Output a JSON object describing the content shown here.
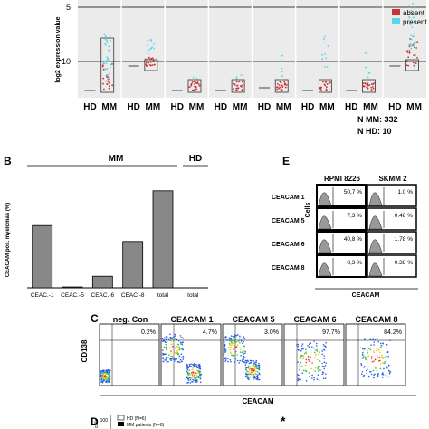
{
  "panelA": {
    "ylabel": "log2 expression value",
    "yticks": [
      5,
      10
    ],
    "legend": [
      {
        "label": "absent",
        "color": "#cc3333"
      },
      {
        "label": "present",
        "color": "#55d8e8"
      }
    ],
    "group_labels": [
      "HD",
      "MM"
    ],
    "n_mm": "N MM: 332",
    "n_hd": "N HD: 10"
  },
  "panelB": {
    "letter": "B",
    "mm_label": "MM",
    "hd_label": "HD",
    "chart_data": {
      "type": "bar",
      "categories": [
        "CEAC.-1",
        "CEAC.-5",
        "CEAC.-6",
        "CEAC.-8",
        "total",
        "total"
      ],
      "values": [
        21.5,
        0.3,
        4,
        16,
        33.5,
        0
      ],
      "ylabel": "CEACAM pos. myelomas (%)",
      "ylim": [
        0,
        40
      ],
      "color": "#888888"
    }
  },
  "panelE": {
    "letter": "E",
    "col_labels": [
      "RPMI 8226",
      "SKMM 2"
    ],
    "row_labels": [
      "CEACAM 1",
      "CEACAM 5",
      "CEACAM 6",
      "CEACAM 8"
    ],
    "rpmi_values": [
      "50,7 %",
      "7,3 %",
      "40,8 %",
      "8,3 %"
    ],
    "skmm_values": [
      "1.0 %",
      "0.48 %",
      "1.78 %",
      "0.38 %"
    ],
    "ylabel": "Cells",
    "xlabel": "CEACAM"
  },
  "panelC": {
    "letter": "C",
    "titles": [
      "neg. Con",
      "CEACAM 1",
      "CEACAM 5",
      "CEACAM 6",
      "CEACAM 8"
    ],
    "values": [
      "0.2%",
      "4.7%",
      "3.0%",
      "97.7%",
      "84.2%"
    ],
    "ylabel": "CD138",
    "xlabel": "CEACAM"
  },
  "panelD": {
    "letter": "D",
    "legend": [
      "HD (N=6)",
      "MM patients (N=8)"
    ],
    "ylabel": "cells",
    "ytick": "100",
    "star": "*"
  }
}
